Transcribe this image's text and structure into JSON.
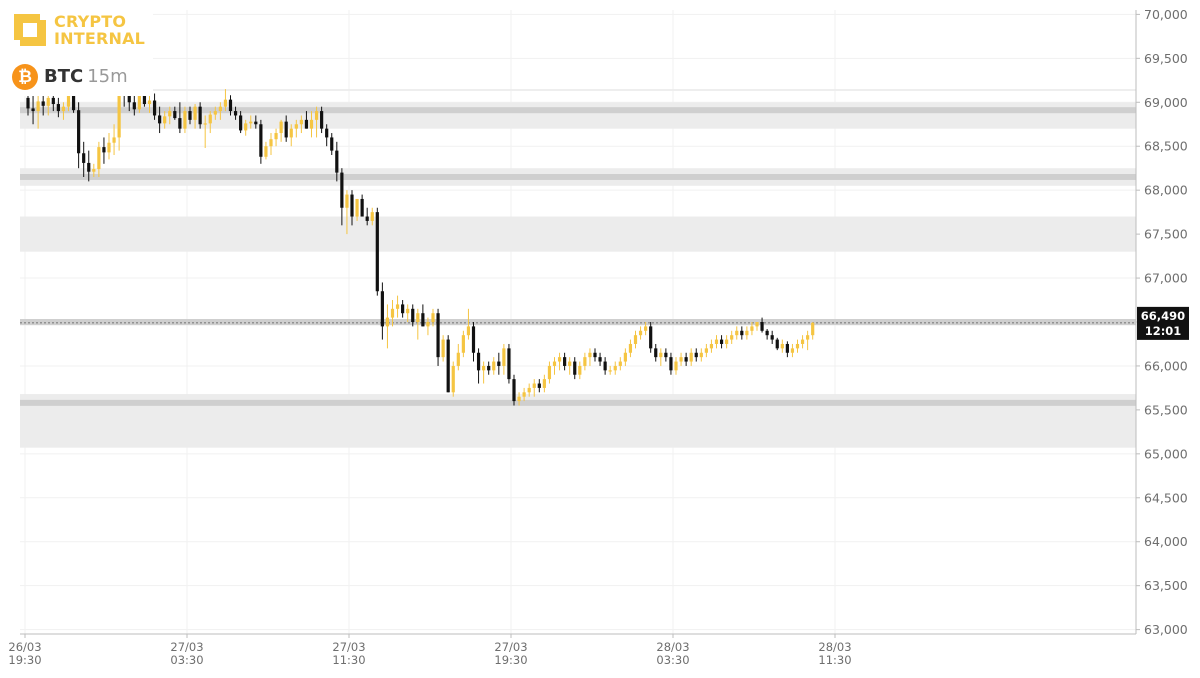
{
  "brand": {
    "line1": "CRYPTO",
    "line2": "INTERNAL"
  },
  "asset": {
    "symbol": "BTC",
    "timeframe": "15m",
    "coin_glyph": "₿",
    "coin_icon": "bitcoin-icon"
  },
  "price_tag": {
    "price": "66,490",
    "time": "12:01"
  },
  "colors": {
    "up": "#f5c542",
    "down": "#111111",
    "zone": "#ececec",
    "zone_line": "#cfcfcf",
    "axis_text": "#6e6e6e",
    "tag_bg": "#111111"
  },
  "chart_data": {
    "type": "candlestick",
    "symbol": "BTC",
    "interval": "15m",
    "ylim": [
      62950,
      70050
    ],
    "y_ticks": [
      {
        "value": 70000,
        "label": "70,000"
      },
      {
        "value": 69500,
        "label": "69,500"
      },
      {
        "value": 69000,
        "label": "69,000"
      },
      {
        "value": 68500,
        "label": "68,500"
      },
      {
        "value": 68000,
        "label": "68,000"
      },
      {
        "value": 67500,
        "label": "67,500"
      },
      {
        "value": 67000,
        "label": "67,000"
      },
      {
        "value": 66500,
        "label": "66,500"
      },
      {
        "value": 66000,
        "label": "66,000"
      },
      {
        "value": 65500,
        "label": "65,500"
      },
      {
        "value": 65000,
        "label": "65,000"
      },
      {
        "value": 64500,
        "label": "64,500"
      },
      {
        "value": 64000,
        "label": "64,000"
      },
      {
        "value": 63500,
        "label": "63,500"
      },
      {
        "value": 63000,
        "label": "63,000"
      }
    ],
    "x_ticks": [
      {
        "date": "26/03",
        "time": "19:30"
      },
      {
        "date": "27/03",
        "time": "03:30"
      },
      {
        "date": "27/03",
        "time": "11:30"
      },
      {
        "date": "27/03",
        "time": "19:30"
      },
      {
        "date": "28/03",
        "time": "03:30"
      },
      {
        "date": "28/03",
        "time": "11:30"
      }
    ],
    "first_bar": "26/03 19:30",
    "bars_per_tick": 32,
    "zones": [
      {
        "low": 69130,
        "high": 69150
      },
      {
        "low": 68700,
        "high": 69000,
        "level": 68910
      },
      {
        "low": 68050,
        "high": 68250,
        "level": 68150
      },
      {
        "low": 67300,
        "high": 67700
      },
      {
        "low": 66460,
        "high": 66530,
        "level": 66500
      },
      {
        "low": 65070,
        "high": 65680,
        "level": 65580
      }
    ],
    "last_price": 66490,
    "candles": [
      [
        69050,
        69250,
        68850,
        68930
      ],
      [
        68930,
        69100,
        68750,
        68900
      ],
      [
        68900,
        69150,
        68700,
        69010
      ],
      [
        69010,
        69200,
        68850,
        68960
      ],
      [
        68960,
        69150,
        68850,
        69050
      ],
      [
        69050,
        69100,
        68900,
        68980
      ],
      [
        68980,
        69050,
        68830,
        68900
      ],
      [
        68900,
        69000,
        68800,
        68950
      ],
      [
        68950,
        69150,
        68900,
        69080
      ],
      [
        69080,
        69200,
        68880,
        68910
      ],
      [
        68910,
        69000,
        68250,
        68420
      ],
      [
        68420,
        68550,
        68150,
        68310
      ],
      [
        68310,
        68450,
        68100,
        68210
      ],
      [
        68210,
        68300,
        68150,
        68240
      ],
      [
        68240,
        68550,
        68150,
        68490
      ],
      [
        68490,
        68600,
        68300,
        68430
      ],
      [
        68430,
        68650,
        68350,
        68540
      ],
      [
        68540,
        68750,
        68400,
        68600
      ],
      [
        68600,
        69500,
        68450,
        69180
      ],
      [
        69180,
        69350,
        68950,
        69150
      ],
      [
        69150,
        69300,
        68900,
        69000
      ],
      [
        69000,
        69100,
        68850,
        68920
      ],
      [
        68920,
        69200,
        68880,
        69150
      ],
      [
        69150,
        69200,
        68950,
        68980
      ],
      [
        68980,
        69100,
        68880,
        69020
      ],
      [
        69020,
        69100,
        68800,
        68850
      ],
      [
        68850,
        68950,
        68650,
        68760
      ],
      [
        68760,
        68900,
        68700,
        68840
      ],
      [
        68840,
        68950,
        68750,
        68900
      ],
      [
        68900,
        68950,
        68800,
        68820
      ],
      [
        68820,
        69000,
        68650,
        68700
      ],
      [
        68700,
        68950,
        68650,
        68900
      ],
      [
        68900,
        68950,
        68750,
        68800
      ],
      [
        68800,
        68980,
        68700,
        68950
      ],
      [
        68950,
        69000,
        68700,
        68750
      ],
      [
        68750,
        68850,
        68480,
        68760
      ],
      [
        68760,
        68900,
        68650,
        68860
      ],
      [
        68860,
        68950,
        68800,
        68900
      ],
      [
        68900,
        69000,
        68800,
        68950
      ],
      [
        68950,
        69150,
        68900,
        69030
      ],
      [
        69030,
        69080,
        68850,
        68900
      ],
      [
        68900,
        68950,
        68800,
        68850
      ],
      [
        68850,
        68900,
        68650,
        68680
      ],
      [
        68680,
        68800,
        68620,
        68760
      ],
      [
        68760,
        68850,
        68700,
        68780
      ],
      [
        68780,
        68850,
        68700,
        68750
      ],
      [
        68750,
        68800,
        68300,
        68380
      ],
      [
        68380,
        68550,
        68350,
        68500
      ],
      [
        68500,
        68650,
        68400,
        68580
      ],
      [
        68580,
        68700,
        68500,
        68650
      ],
      [
        68650,
        68800,
        68550,
        68780
      ],
      [
        68780,
        68850,
        68550,
        68600
      ],
      [
        68600,
        68750,
        68500,
        68700
      ],
      [
        68700,
        68800,
        68600,
        68750
      ],
      [
        68750,
        68850,
        68650,
        68800
      ],
      [
        68800,
        68900,
        68700,
        68700
      ],
      [
        68700,
        68900,
        68600,
        68800
      ],
      [
        68800,
        68950,
        68600,
        68900
      ],
      [
        68900,
        68950,
        68650,
        68700
      ],
      [
        68700,
        68750,
        68500,
        68600
      ],
      [
        68600,
        68650,
        68400,
        68450
      ],
      [
        68450,
        68550,
        68100,
        68200
      ],
      [
        68200,
        68250,
        67600,
        67800
      ],
      [
        67800,
        68000,
        67500,
        67950
      ],
      [
        67950,
        68000,
        67600,
        67700
      ],
      [
        67700,
        67900,
        67650,
        67900
      ],
      [
        67900,
        67950,
        67700,
        67700
      ],
      [
        67700,
        67800,
        67600,
        67650
      ],
      [
        67650,
        67800,
        67600,
        67750
      ],
      [
        67750,
        67800,
        66800,
        66850
      ],
      [
        66850,
        66950,
        66300,
        66450
      ],
      [
        66450,
        66700,
        66200,
        66550
      ],
      [
        66550,
        66750,
        66450,
        66650
      ],
      [
        66650,
        66800,
        66550,
        66700
      ],
      [
        66700,
        66750,
        66550,
        66600
      ],
      [
        66600,
        66700,
        66500,
        66650
      ],
      [
        66650,
        66700,
        66450,
        66500
      ],
      [
        66500,
        66650,
        66300,
        66600
      ],
      [
        66600,
        66700,
        66450,
        66450
      ],
      [
        66450,
        66550,
        66350,
        66500
      ],
      [
        66500,
        66650,
        66450,
        66600
      ],
      [
        66600,
        66650,
        66000,
        66100
      ],
      [
        66100,
        66350,
        66050,
        66300
      ],
      [
        66300,
        66350,
        65700,
        65700
      ],
      [
        65700,
        66050,
        65650,
        66000
      ],
      [
        66000,
        66250,
        65950,
        66150
      ],
      [
        66150,
        66400,
        66100,
        66350
      ],
      [
        66350,
        66650,
        66300,
        66450
      ],
      [
        66450,
        66500,
        66050,
        66150
      ],
      [
        66150,
        66200,
        65800,
        65950
      ],
      [
        65950,
        66050,
        65800,
        66000
      ],
      [
        66000,
        66050,
        65900,
        65950
      ],
      [
        65950,
        66100,
        65900,
        66050
      ],
      [
        66050,
        66150,
        65900,
        66000
      ],
      [
        66000,
        66250,
        65900,
        66200
      ],
      [
        66200,
        66250,
        65800,
        65850
      ],
      [
        65850,
        65900,
        65550,
        65600
      ],
      [
        65600,
        65700,
        65550,
        65650
      ],
      [
        65650,
        65750,
        65600,
        65700
      ],
      [
        65700,
        65800,
        65650,
        65750
      ],
      [
        65750,
        65850,
        65650,
        65800
      ],
      [
        65800,
        65850,
        65700,
        65750
      ],
      [
        65750,
        65900,
        65700,
        65850
      ],
      [
        65850,
        66050,
        65800,
        66000
      ],
      [
        66000,
        66100,
        65900,
        66050
      ],
      [
        66050,
        66150,
        65950,
        66100
      ],
      [
        66100,
        66150,
        65950,
        66000
      ],
      [
        66000,
        66100,
        65900,
        66050
      ],
      [
        66050,
        66100,
        65850,
        65900
      ],
      [
        65900,
        66050,
        65850,
        66000
      ],
      [
        66000,
        66150,
        65950,
        66100
      ],
      [
        66100,
        66200,
        66000,
        66150
      ],
      [
        66150,
        66200,
        66050,
        66100
      ],
      [
        66100,
        66150,
        66000,
        66050
      ],
      [
        66050,
        66100,
        65900,
        65950
      ],
      [
        65950,
        66000,
        65900,
        65950
      ],
      [
        65950,
        66050,
        65900,
        66000
      ],
      [
        66000,
        66100,
        65950,
        66050
      ],
      [
        66050,
        66200,
        66000,
        66150
      ],
      [
        66150,
        66300,
        66100,
        66250
      ],
      [
        66250,
        66400,
        66200,
        66350
      ],
      [
        66350,
        66450,
        66300,
        66400
      ],
      [
        66400,
        66500,
        66350,
        66450
      ],
      [
        66450,
        66500,
        66150,
        66200
      ],
      [
        66200,
        66250,
        66050,
        66100
      ],
      [
        66100,
        66200,
        66000,
        66150
      ],
      [
        66150,
        66200,
        66050,
        66100
      ],
      [
        66100,
        66150,
        65900,
        65950
      ],
      [
        65950,
        66100,
        65900,
        66050
      ],
      [
        66050,
        66150,
        66000,
        66100
      ],
      [
        66100,
        66150,
        66000,
        66050
      ],
      [
        66050,
        66200,
        66000,
        66150
      ],
      [
        66150,
        66200,
        66050,
        66100
      ],
      [
        66100,
        66200,
        66050,
        66150
      ],
      [
        66150,
        66250,
        66100,
        66200
      ],
      [
        66200,
        66300,
        66150,
        66250
      ],
      [
        66250,
        66350,
        66200,
        66300
      ],
      [
        66300,
        66350,
        66200,
        66250
      ],
      [
        66250,
        66350,
        66200,
        66300
      ],
      [
        66300,
        66400,
        66250,
        66350
      ],
      [
        66350,
        66450,
        66300,
        66400
      ],
      [
        66400,
        66450,
        66300,
        66350
      ],
      [
        66350,
        66450,
        66300,
        66400
      ],
      [
        66400,
        66500,
        66350,
        66450
      ],
      [
        66450,
        66500,
        66400,
        66500
      ],
      [
        66500,
        66550,
        66380,
        66400
      ],
      [
        66400,
        66420,
        66300,
        66350
      ],
      [
        66350,
        66400,
        66250,
        66300
      ],
      [
        66300,
        66320,
        66180,
        66200
      ],
      [
        66200,
        66300,
        66150,
        66250
      ],
      [
        66250,
        66280,
        66100,
        66150
      ],
      [
        66150,
        66250,
        66100,
        66200
      ],
      [
        66200,
        66300,
        66150,
        66250
      ],
      [
        66250,
        66350,
        66200,
        66300
      ],
      [
        66300,
        66400,
        66180,
        66350
      ],
      [
        66350,
        66500,
        66300,
        66490
      ]
    ]
  }
}
